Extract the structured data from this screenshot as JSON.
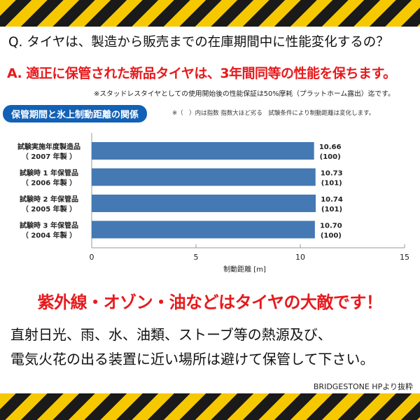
{
  "question": "Q. タイヤは、製造から販売までの在庫期間中に性能変化するの？",
  "answer": "A. 適正に保管された新品タイヤは、3年間同等の性能を保ちます。",
  "note1": "※スタッドレスタイヤとしての使用開始後の性能保証は50%摩耗（プラットホーム露出）迄です。",
  "badge": "保管期間と氷上制動距離の関係",
  "note2": "※（　）内は指数 指数大ほど劣る　試験条件により制動距離は変化します。",
  "chart_data": {
    "type": "bar",
    "orientation": "horizontal",
    "categories": [
      [
        "試験実施年度製造品",
        "（ 2007 年製 ）"
      ],
      [
        "試験時 1 年保管品",
        "（ 2006 年製 ）"
      ],
      [
        "試験時 2 年保管品",
        "（ 2005 年製 ）"
      ],
      [
        "試験時 3 年保管品",
        "（ 2004 年製 ）"
      ]
    ],
    "values": [
      10.66,
      10.73,
      10.74,
      10.7
    ],
    "value_labels": [
      "10.66",
      "10.73",
      "10.74",
      "10.70"
    ],
    "index_labels": [
      "(100)",
      "(101)",
      "(101)",
      "(100)"
    ],
    "xlabel": "制動距離 [m]",
    "xlim": [
      0,
      15
    ],
    "xticks": [
      "0",
      "5",
      "10",
      "15"
    ],
    "bar_color": "#4479b4",
    "grid": false
  },
  "warning": "紫外線・オゾン・油などはタイヤの大敵です！",
  "line1": "直射日光、雨、水、油類、ストーブ等の熱源及び、",
  "line2": "電気火花の出る装置に近い場所は避けて保管して下さい。",
  "source": "BRIDGESTONE  HPより抜粋"
}
